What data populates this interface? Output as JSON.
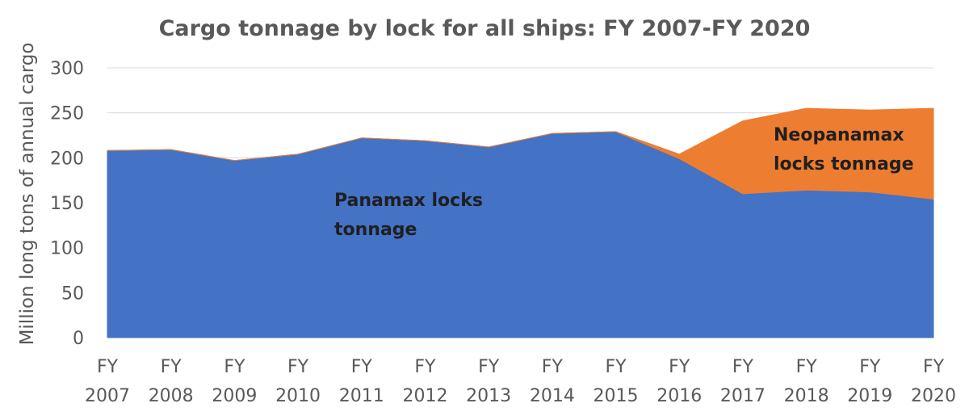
{
  "chart_data": {
    "type": "area",
    "title": "Cargo tonnage by lock for all ships: FY 2007-FY 2020",
    "xlabel": "",
    "ylabel": "Million long tons of annual cargo",
    "categories": [
      [
        "FY",
        "2007"
      ],
      [
        "FY",
        "2008"
      ],
      [
        "FY",
        "2009"
      ],
      [
        "FY",
        "2010"
      ],
      [
        "FY",
        "2011"
      ],
      [
        "FY",
        "2012"
      ],
      [
        "FY",
        "2013"
      ],
      [
        "FY",
        "2014"
      ],
      [
        "FY",
        "2015"
      ],
      [
        "FY",
        "2016"
      ],
      [
        "FY",
        "2017"
      ],
      [
        "FY",
        "2018"
      ],
      [
        "FY",
        "2019"
      ],
      [
        "FY",
        "2020"
      ]
    ],
    "ylim": [
      0,
      300
    ],
    "yticks": [
      0,
      50,
      100,
      150,
      200,
      250,
      300
    ],
    "stacked": true,
    "grid": true,
    "legend": "none",
    "series": [
      {
        "name": "",
        "values": [
          208,
          209,
          197,
          204,
          222,
          219,
          212,
          227,
          229,
          199,
          160,
          164,
          162,
          154
        ],
        "color": "#4472C4"
      },
      {
        "name": "",
        "values": [
          0,
          0,
          0,
          0,
          0,
          0,
          0,
          0,
          0,
          5,
          81,
          91,
          91,
          101
        ],
        "color": "#ED7D31"
      }
    ],
    "annotations": [
      {
        "lines": [
          "Panamax locks",
          "tonnage"
        ],
        "series": 0
      },
      {
        "lines": [
          "Neopanamax",
          "locks tonnage"
        ],
        "series": 1
      }
    ]
  }
}
